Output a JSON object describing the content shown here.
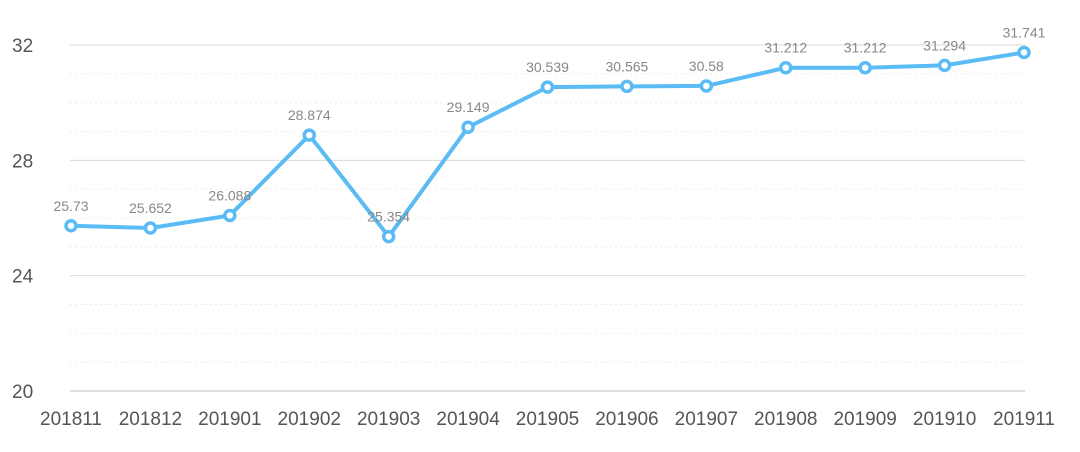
{
  "chart_data": {
    "type": "line",
    "title": "",
    "xlabel": "",
    "ylabel": "",
    "categories": [
      "201811",
      "201812",
      "201901",
      "201902",
      "201903",
      "201904",
      "201905",
      "201906",
      "201907",
      "201908",
      "201909",
      "201910",
      "201911"
    ],
    "series": [
      {
        "values": [
          25.73,
          25.652,
          26.088,
          28.874,
          25.354,
          29.149,
          30.539,
          30.565,
          30.58,
          31.212,
          31.212,
          31.294,
          31.741
        ],
        "labels": [
          "25.73",
          "25.652",
          "26.088",
          "28.874",
          "25.354",
          "29.149",
          "30.539",
          "30.565",
          "30.58",
          "31.212",
          "31.212",
          "31.294",
          "31.741"
        ]
      }
    ],
    "ylim": [
      20,
      32
    ],
    "yticks": [
      "20",
      "24",
      "28",
      "32"
    ],
    "ytick_values": [
      20,
      24,
      28,
      32
    ],
    "grid": true,
    "colors": {
      "line": "#5bbcf5",
      "grid": "#d9d9d9",
      "text": "#555555",
      "label": "#888888"
    }
  }
}
